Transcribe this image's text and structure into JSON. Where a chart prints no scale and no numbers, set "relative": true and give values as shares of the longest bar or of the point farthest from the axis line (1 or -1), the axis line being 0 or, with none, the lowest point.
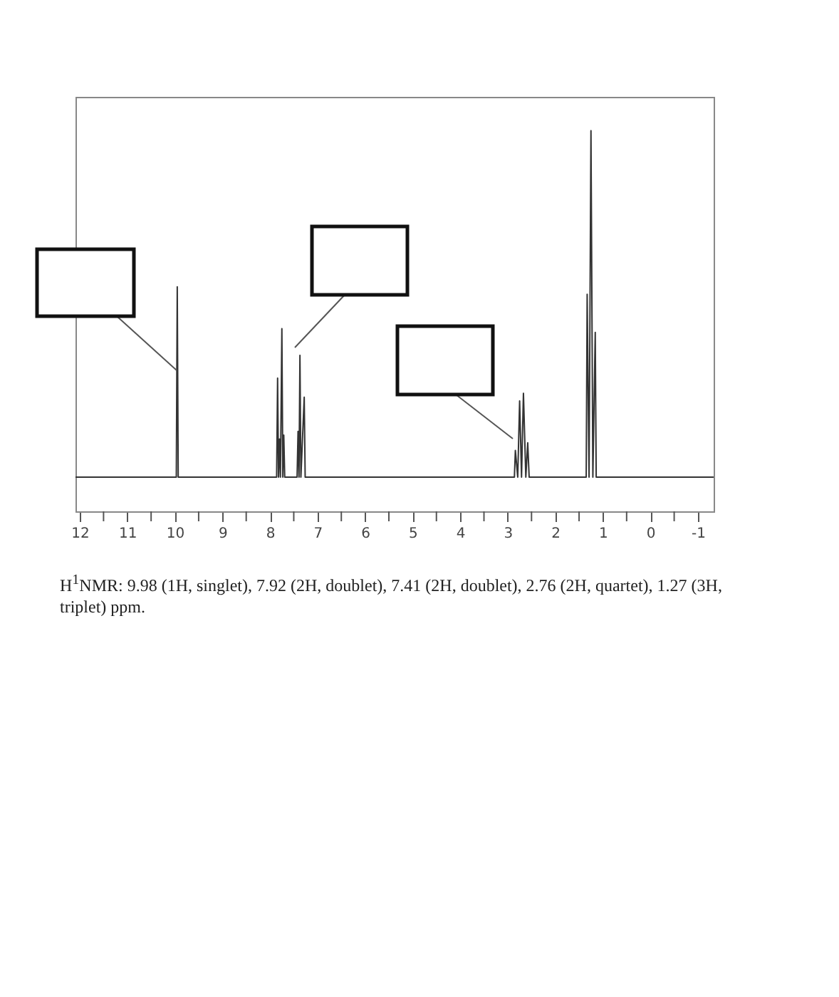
{
  "chart_data": {
    "type": "line",
    "relative": true,
    "xlim": [
      12.09,
      -1.33
    ],
    "xticks": [
      12,
      {
        "value": 11.5,
        "label": null
      },
      11,
      {
        "value": 10.5,
        "label": null
      },
      10,
      {
        "value": 9.5,
        "label": null
      },
      9,
      {
        "value": 8.5,
        "label": null
      },
      8,
      {
        "value": 7.5,
        "label": null
      },
      7,
      {
        "value": 6.5,
        "label": null
      },
      6,
      {
        "value": 5.5,
        "label": null
      },
      5,
      {
        "value": 4.5,
        "label": null
      },
      4,
      {
        "value": 3.5,
        "label": null
      },
      3,
      {
        "value": 2.5,
        "label": null
      },
      2,
      {
        "value": 1.5,
        "label": null
      },
      1,
      {
        "value": 0.5,
        "label": null
      },
      0,
      {
        "value": -0.5,
        "label": null
      },
      -1
    ],
    "grid": false,
    "series": [
      {
        "color": "#333333",
        "x": [
          12.09,
          9.97,
          9.95,
          9.93,
          7.86,
          7.84,
          7.82,
          7.8,
          7.78,
          7.75,
          7.73,
          7.71,
          7.69,
          7.43,
          7.41,
          7.39,
          7.37,
          7.35,
          7.28,
          7.26,
          2.86,
          2.84,
          2.79,
          2.75,
          2.71,
          2.67,
          2.62,
          2.58,
          2.55,
          1.35,
          1.33,
          1.29,
          1.25,
          1.21,
          1.16,
          1.14,
          -1.33
        ],
        "values": [
          0.09,
          0.09,
          0.59,
          0.09,
          0.09,
          0.35,
          0.09,
          0.19,
          0.09,
          0.48,
          0.09,
          0.2,
          0.09,
          0.09,
          0.21,
          0.09,
          0.41,
          0.09,
          0.3,
          0.09,
          0.09,
          0.16,
          0.09,
          0.29,
          0.09,
          0.31,
          0.09,
          0.18,
          0.09,
          0.09,
          0.57,
          0.09,
          1,
          0.09,
          0.47,
          0.09,
          0.09
        ]
      }
    ],
    "annotations": [
      "H$^{1}$NMR: 9.98 (1H, singlet), 7.92 (2H, doublet), 7.41 (2H, doublet), 2.76 (2H, quartet), 1.27 (3H, triplet) ppm."
    ]
  }
}
